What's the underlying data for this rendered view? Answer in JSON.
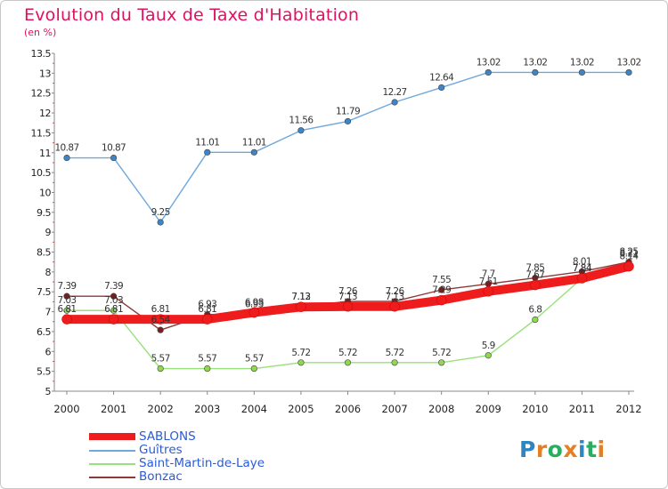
{
  "title": "Evolution du Taux de Taxe d'Habitation",
  "subtitle": "(en %)",
  "brand": {
    "text": "Proxiti",
    "letters": [
      {
        "ch": "P",
        "color": "#2e86c1"
      },
      {
        "ch": "r",
        "color": "#e67e22"
      },
      {
        "ch": "o",
        "color": "#27ae60"
      },
      {
        "ch": "x",
        "color": "#e67e22"
      },
      {
        "ch": "i",
        "color": "#2e86c1"
      },
      {
        "ch": "t",
        "color": "#27ae60"
      },
      {
        "ch": "i",
        "color": "#e67e22"
      }
    ]
  },
  "chart_data": {
    "type": "line",
    "title": "Evolution du Taux de Taxe d'Habitation",
    "subtitle": "(en %)",
    "x": [
      "2000",
      "2001",
      "2002",
      "2003",
      "2004",
      "2005",
      "2006",
      "2007",
      "2008",
      "2009",
      "2010",
      "2011",
      "2012"
    ],
    "ylim": [
      5,
      13.5
    ],
    "yticks": [
      "5",
      "5.5",
      "6",
      "6.5",
      "7",
      "7.5",
      "8",
      "8.5",
      "9",
      "9.5",
      "10",
      "10.5",
      "11",
      "11.5",
      "12",
      "12.5",
      "13",
      "13.5"
    ],
    "grid": false,
    "legend_position": "bottom-left",
    "series": [
      {
        "name": "SABLONS",
        "color": "#ee1c1c",
        "values": [
          6.81,
          6.81,
          6.81,
          6.81,
          6.98,
          7.12,
          7.13,
          7.13,
          7.29,
          7.51,
          7.67,
          7.84,
          8.14
        ],
        "labels": [
          "6.81",
          "6.81",
          "6.81",
          "6.81",
          "6.98",
          "7.12",
          "7.13",
          "7.13",
          "7.29",
          "7.51",
          "7.67",
          "7.84",
          "8.14"
        ]
      },
      {
        "name": "Guîtres",
        "color": "#6fa8dc",
        "values": [
          10.87,
          10.87,
          9.25,
          11.01,
          11.01,
          11.56,
          11.79,
          12.27,
          12.64,
          13.02,
          13.02,
          13.02,
          13.02
        ],
        "labels": [
          "10.87",
          "10.87",
          "9.25",
          "11.01",
          "11.01",
          "11.56",
          "11.79",
          "12.27",
          "12.64",
          "13.02",
          "13.02",
          "13.02",
          "13.02"
        ]
      },
      {
        "name": "Saint-Martin-de-Laye",
        "color": "#99e07a",
        "values": [
          7.03,
          7.03,
          5.57,
          5.57,
          5.57,
          5.72,
          5.72,
          5.72,
          5.72,
          5.9,
          6.8,
          7.84,
          8.21
        ],
        "labels": [
          "7.03",
          "7.03",
          "5.57",
          "5.57",
          "5.57",
          "5.72",
          "5.72",
          "5.72",
          "5.72",
          "5.9",
          "6.8",
          "7.84",
          "8.21"
        ]
      },
      {
        "name": "Bonzac",
        "color": "#8b3a3a",
        "values": [
          7.39,
          7.39,
          6.54,
          6.93,
          6.93,
          7.13,
          7.26,
          7.26,
          7.55,
          7.7,
          7.85,
          8.01,
          8.25
        ],
        "labels": [
          "7.39",
          "7.39",
          "6.54",
          "6.93",
          "6.93",
          "7.13",
          "7.26",
          "7.26",
          "7.55",
          "7.7",
          "7.85",
          "8.01",
          "8.25"
        ]
      }
    ]
  }
}
